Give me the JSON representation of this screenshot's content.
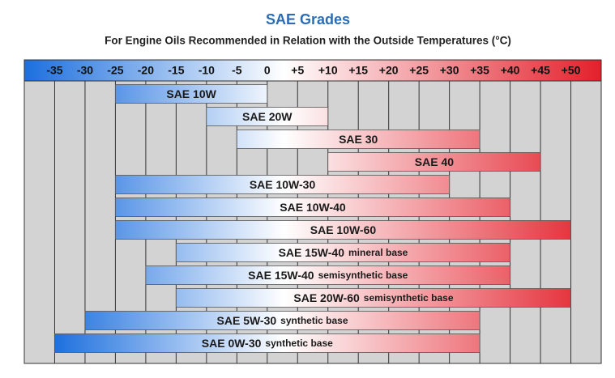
{
  "chart_data": {
    "type": "range-bar",
    "title": "SAE Grades",
    "subtitle": "For Engine Oils Recommended in Relation with the Outside Temperatures (°C)",
    "categories": [
      "SAE 10W",
      "SAE 20W",
      "SAE 30",
      "SAE 40",
      "SAE 10W-30",
      "SAE 10W-40",
      "SAE 10W-60",
      "SAE 15W-40",
      "SAE 15W-40",
      "SAE 20W-60",
      "SAE 5W-30",
      "SAE 0W-30"
    ],
    "notes": [
      null,
      null,
      null,
      null,
      null,
      null,
      null,
      "mineral base",
      "semisynthetic base",
      "semisynthetic base",
      "synthetic base",
      "synthetic base"
    ],
    "values": [
      [
        -25,
        0
      ],
      [
        -10,
        10
      ],
      [
        -5,
        35
      ],
      [
        10,
        45
      ],
      [
        -25,
        30
      ],
      [
        -25,
        40
      ],
      [
        -25,
        50
      ],
      [
        -15,
        40
      ],
      [
        -20,
        40
      ],
      [
        -15,
        50
      ],
      [
        -30,
        35
      ],
      [
        -35,
        35
      ]
    ],
    "xlim": [
      -40,
      55
    ],
    "xticks": [
      -35,
      -30,
      -25,
      -20,
      -15,
      -10,
      -5,
      0,
      {
        "value": 5,
        "label": "+5"
      },
      {
        "value": 10,
        "label": "+10"
      },
      {
        "value": 15,
        "label": "+15"
      },
      {
        "value": 20,
        "label": "+20"
      },
      {
        "value": 25,
        "label": "+25"
      },
      {
        "value": 30,
        "label": "+30"
      },
      {
        "value": 35,
        "label": "+35"
      },
      {
        "value": 40,
        "label": "+40"
      },
      {
        "value": 45,
        "label": "+45"
      },
      {
        "value": 50,
        "label": "+50"
      }
    ],
    "gradient": [
      "#1c6fde",
      "#ffffff",
      "#e3202b"
    ],
    "grid": true
  }
}
